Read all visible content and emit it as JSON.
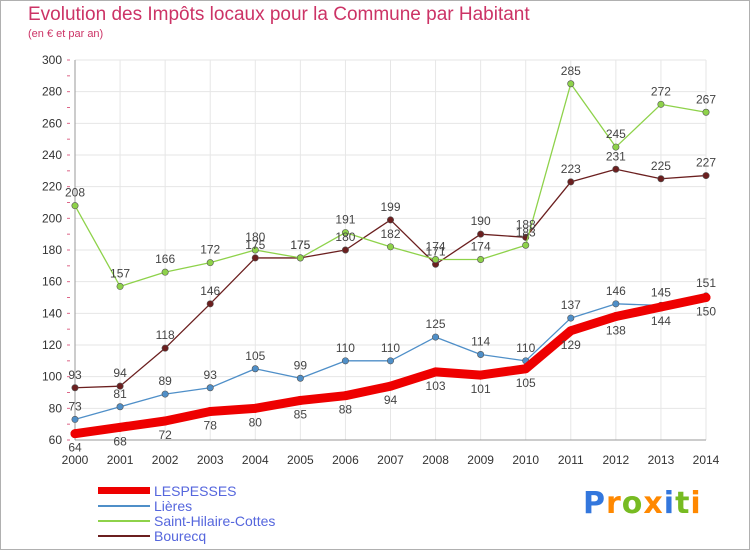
{
  "title": "Evolution des Impôts locaux pour la Commune par Habitant",
  "subtitle": "(en € et par an)",
  "logo": {
    "text": "Proxiti",
    "letters": [
      "P",
      "r",
      "o",
      "x",
      "i",
      "t",
      "i"
    ],
    "colors": [
      "#3377dd",
      "#ff8800",
      "#77bb22",
      "#ff8800",
      "#3377dd",
      "#77bb22",
      "#ff8800"
    ]
  },
  "chart_data": {
    "type": "line",
    "title": "Evolution des Impôts locaux pour la Commune par Habitant",
    "ylabel": "(en € et par an)",
    "xlabel": "",
    "x": [
      "2000",
      "2001",
      "2002",
      "2003",
      "2004",
      "2005",
      "2006",
      "2007",
      "2008",
      "2009",
      "2010",
      "2011",
      "2012",
      "2013",
      "2014"
    ],
    "ylim": [
      60,
      300
    ],
    "yticks": [
      60,
      80,
      100,
      120,
      140,
      160,
      180,
      200,
      220,
      240,
      260,
      280,
      300
    ],
    "grid": true,
    "legend_position": "bottom-left",
    "series": [
      {
        "name": "LESPESSES",
        "color": "#ee0000",
        "values": [
          64,
          68,
          72,
          78,
          80,
          85,
          88,
          94,
          103,
          101,
          105,
          129,
          138,
          144,
          150
        ],
        "labels": [
          "64",
          "68",
          "72",
          "78",
          "80",
          "85",
          "88",
          "94",
          "103",
          "101",
          "105",
          "129",
          "138",
          "144",
          "150"
        ]
      },
      {
        "name": "Lières",
        "color": "#4f8fc8",
        "values": [
          73,
          81,
          89,
          93,
          105,
          99,
          110,
          110,
          125,
          114,
          110,
          137,
          146,
          145,
          151
        ],
        "labels": [
          "73",
          "81",
          "89",
          "93",
          "105",
          "99",
          "110",
          "110",
          "125",
          "114",
          "110",
          "137",
          "146",
          "145",
          "151"
        ]
      },
      {
        "name": "Saint-Hilaire-Cottes",
        "color": "#8ed24a",
        "values": [
          208,
          157,
          166,
          172,
          180,
          175,
          191,
          182,
          174,
          174,
          183,
          285,
          245,
          272,
          267
        ],
        "labels": [
          "208",
          "157",
          "166",
          "172",
          "180",
          "175",
          "191",
          "182",
          "174",
          "174",
          "183",
          "285",
          "245",
          "272",
          "267"
        ]
      },
      {
        "name": "Bourecq",
        "color": "#6b1f1f",
        "values": [
          93,
          94,
          118,
          146,
          175,
          175,
          180,
          199,
          171,
          190,
          188,
          223,
          231,
          225,
          227
        ],
        "labels": [
          "93",
          "94",
          "118",
          "146",
          "175",
          "175",
          "180",
          "199",
          "171",
          "190",
          "188",
          "223",
          "231",
          "225",
          "227"
        ]
      }
    ]
  }
}
